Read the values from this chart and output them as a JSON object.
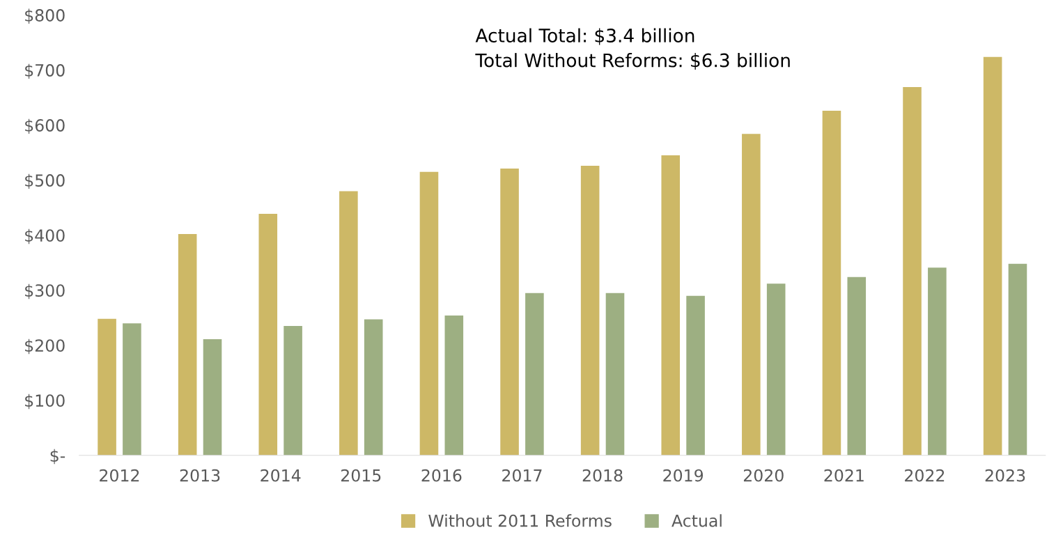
{
  "chart_data": {
    "type": "bar",
    "categories": [
      "2012",
      "2013",
      "2014",
      "2015",
      "2016",
      "2017",
      "2018",
      "2019",
      "2020",
      "2021",
      "2022",
      "2023"
    ],
    "series": [
      {
        "name": "Without 2011 Reforms",
        "color": "#cdb866",
        "values": [
          248,
          402,
          439,
          480,
          515,
          521,
          526,
          545,
          584,
          626,
          669,
          724
        ]
      },
      {
        "name": "Actual",
        "color": "#9daf82",
        "values": [
          240,
          211,
          235,
          247,
          254,
          295,
          295,
          290,
          312,
          324,
          341,
          348
        ]
      }
    ],
    "ylim": [
      0,
      800
    ],
    "yticks": [
      {
        "value": 0,
        "label": "$-"
      },
      {
        "value": 100,
        "label": "$100"
      },
      {
        "value": 200,
        "label": "$200"
      },
      {
        "value": 300,
        "label": "$300"
      },
      {
        "value": 400,
        "label": "$400"
      },
      {
        "value": 500,
        "label": "$500"
      },
      {
        "value": 600,
        "label": "$600"
      },
      {
        "value": 700,
        "label": "$700"
      },
      {
        "value": 800,
        "label": "$800"
      }
    ],
    "annotations": [
      "Actual Total: $3.4 billion\nTotal Without Reforms: $6.3 billion"
    ],
    "grid": false,
    "legend": "bottom"
  }
}
